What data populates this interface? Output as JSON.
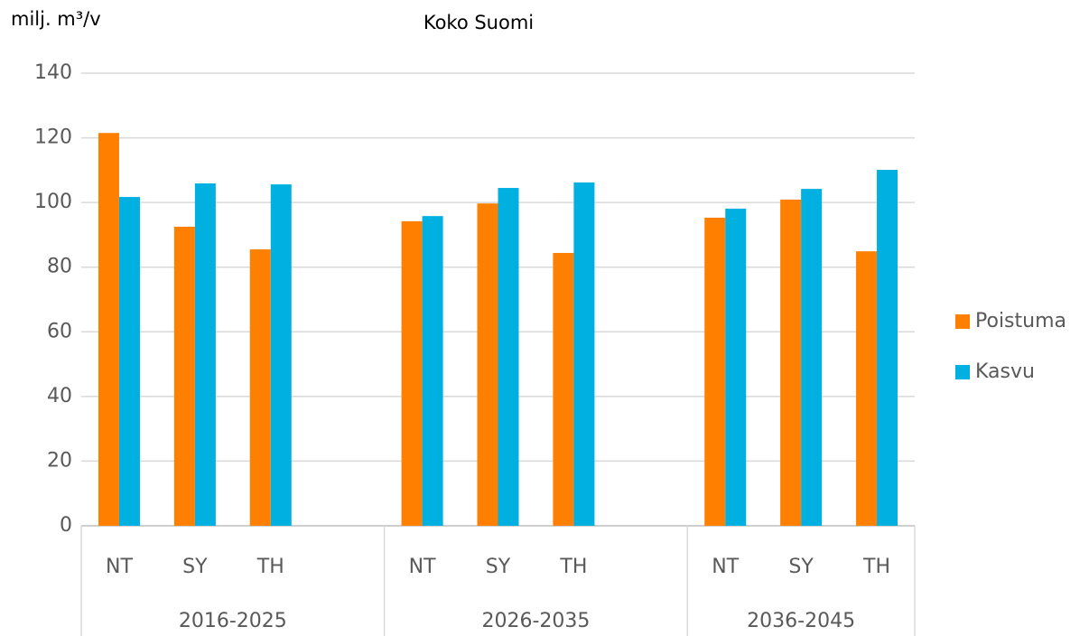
{
  "chart_data": {
    "type": "bar",
    "title": "Koko Suomi",
    "y_label": "milj. m³/v",
    "categories": [
      "NT",
      "SY",
      "TH",
      null,
      "NT",
      "SY",
      "TH",
      null,
      "NT",
      "SY",
      "TH"
    ],
    "groups": [
      "2016-2025",
      "2026-2035",
      "2036-2045"
    ],
    "series": [
      {
        "name": "Poistuma",
        "color": "#ff8000",
        "values": [
          121.5,
          92.5,
          85.5,
          null,
          94.2,
          99.7,
          84.4,
          null,
          95.3,
          100.9,
          84.9
        ]
      },
      {
        "name": "Kasvu",
        "color": "#00b0e0",
        "values": [
          101.7,
          105.9,
          105.6,
          null,
          95.8,
          104.5,
          106.2,
          null,
          98.1,
          104.2,
          110.1
        ]
      }
    ],
    "ylim": [
      0,
      140
    ],
    "yticks": [
      0,
      20,
      40,
      60,
      80,
      100,
      120,
      140
    ],
    "grid": true,
    "legend": "right"
  }
}
